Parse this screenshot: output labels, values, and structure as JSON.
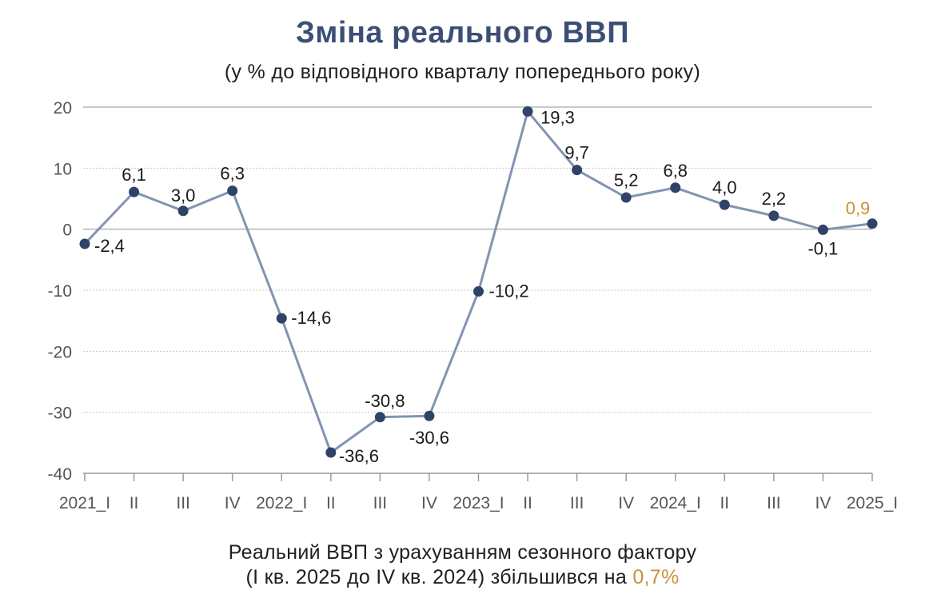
{
  "title": "Зміна реального ВВП",
  "subtitle": "(у % до відповідного кварталу попереднього року)",
  "footnote": {
    "line1": "Реальний ВВП з урахуванням сезонного фактору",
    "line2_text": "(I кв. 2025 до IV кв. 2024) збільшився на ",
    "line2_value": "0,7%"
  },
  "colors": {
    "line": "#8394b1",
    "marker": "#2f4368",
    "title": "#3b4f76",
    "accent": "#c8913a",
    "grid": "#c9c9c9",
    "zero_line": "#b5b5b5"
  },
  "chart_data": {
    "type": "line",
    "categories": [
      "2021_I",
      "II",
      "III",
      "IV",
      "2022_I",
      "II",
      "III",
      "IV",
      "2023_I",
      "II",
      "III",
      "IV",
      "2024_I",
      "II",
      "III",
      "IV",
      "2025_I"
    ],
    "values": [
      -2.4,
      6.1,
      3.0,
      6.3,
      -14.6,
      -36.6,
      -30.8,
      -30.6,
      -10.2,
      19.3,
      9.7,
      5.2,
      6.8,
      4.0,
      2.2,
      -0.1,
      0.9
    ],
    "data_labels": [
      "-2,4",
      "6,1",
      "3,0",
      "6,3",
      "-14,6",
      "-36,6",
      "-30,8",
      "-30,6",
      "-10,2",
      "19,3",
      "9,7",
      "5,2",
      "6,8",
      "4,0",
      "2,2",
      "-0,1",
      "0,9"
    ],
    "yticks": [
      20,
      10,
      0,
      -10,
      -20,
      -30,
      -40
    ],
    "ylim": [
      -40,
      20
    ],
    "grid": true,
    "highlight_last": true
  }
}
